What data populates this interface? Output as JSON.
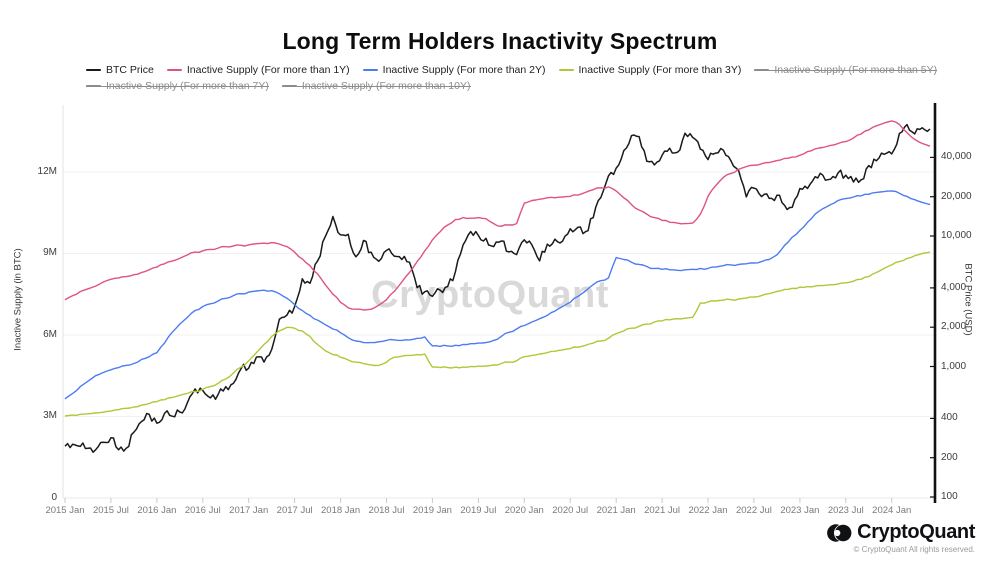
{
  "title": "Long Term Holders Inactivity Spectrum",
  "watermark": "CryptoQuant",
  "legend": {
    "items": [
      {
        "label": "BTC Price",
        "color": "#1a1a1a",
        "disabled": false
      },
      {
        "label": "Inactive Supply (For more than 1Y)",
        "color": "#df5380",
        "disabled": false
      },
      {
        "label": "Inactive Supply (For more than 2Y)",
        "color": "#4d7cf2",
        "disabled": false
      },
      {
        "label": "Inactive Supply (For more than 3Y)",
        "color": "#adc936",
        "disabled": false
      },
      {
        "label": "Inactive Supply (For more than 5Y)",
        "color": "#8c8c8c",
        "disabled": true
      },
      {
        "label": "Inactive Supply (For more than 7Y)",
        "color": "#8c8c8c",
        "disabled": true
      },
      {
        "label": "Inactive Supply (For more than 10Y)",
        "color": "#8c8c8c",
        "disabled": true
      }
    ]
  },
  "axes": {
    "left": {
      "title": "Inactive Supply (in BTC)",
      "ticks": [
        {
          "label": "0",
          "v": 0
        },
        {
          "label": "3M",
          "v": 3
        },
        {
          "label": "6M",
          "v": 6
        },
        {
          "label": "9M",
          "v": 9
        },
        {
          "label": "12M",
          "v": 12
        }
      ]
    },
    "right": {
      "title": "BTC Price (USD)",
      "ticks": [
        {
          "label": "100",
          "v": 100
        },
        {
          "label": "200",
          "v": 200
        },
        {
          "label": "400",
          "v": 400
        },
        {
          "label": "1,000",
          "v": 1000
        },
        {
          "label": "2,000",
          "v": 2000
        },
        {
          "label": "4,000",
          "v": 4000
        },
        {
          "label": "10,000",
          "v": 10000
        },
        {
          "label": "20,000",
          "v": 20000
        },
        {
          "label": "40,000",
          "v": 40000
        }
      ]
    },
    "x": {
      "ticks": [
        "2015 Jan",
        "2015 Jul",
        "2016 Jan",
        "2016 Jul",
        "2017 Jan",
        "2017 Jul",
        "2018 Jan",
        "2018 Jul",
        "2019 Jan",
        "2019 Jul",
        "2020 Jan",
        "2020 Jul",
        "2021 Jan",
        "2021 Jul",
        "2022 Jan",
        "2022 Jul",
        "2023 Jan",
        "2023 Jul",
        "2024 Jan"
      ]
    }
  },
  "footer": {
    "brand": "CryptoQuant",
    "copyright": "© CryptoQuant All rights reserved."
  },
  "chart_data": {
    "type": "line",
    "title": "Long Term Holders Inactivity Spectrum",
    "x_start": "2015-01",
    "x_end": "2024-06",
    "x_interval": "monthly",
    "left_axis": {
      "label": "Inactive Supply (in BTC)",
      "unit": "million BTC",
      "range": [
        0,
        14.5
      ],
      "scale": "linear"
    },
    "right_axis": {
      "label": "BTC Price (USD)",
      "unit": "USD",
      "range": [
        100,
        80000
      ],
      "scale": "log"
    },
    "legend_position": "top-left",
    "grid": "horizontal-only",
    "hidden_series": [
      "Inactive Supply (For more than 5Y)",
      "Inactive Supply (For more than 7Y)",
      "Inactive Supply (For more than 10Y)"
    ],
    "series": [
      {
        "name": "BTC Price",
        "axis": "right",
        "color": "#1a1a1a",
        "unit": "USD",
        "values": [
          245,
          254,
          244,
          236,
          230,
          263,
          284,
          230,
          236,
          314,
          378,
          430,
          368,
          437,
          416,
          448,
          531,
          673,
          655,
          575,
          610,
          700,
          742,
          963,
          970,
          1180,
          1080,
          1350,
          2300,
          2480,
          2875,
          4700,
          4340,
          6450,
          9900,
          14100,
          10200,
          10300,
          6930,
          9240,
          7500,
          6400,
          7750,
          7020,
          6600,
          6300,
          4020,
          3740,
          3450,
          3850,
          4100,
          5320,
          8550,
          10800,
          10080,
          9600,
          8300,
          9150,
          7550,
          7200,
          9350,
          8550,
          6440,
          8650,
          9450,
          9140,
          11350,
          11650,
          10780,
          13800,
          19700,
          28950,
          33110,
          45140,
          58800,
          57750,
          37330,
          35040,
          41500,
          47110,
          43790,
          61320,
          57000,
          46220,
          38480,
          43190,
          45540,
          37650,
          31790,
          19940,
          23290,
          20050,
          19420,
          20490,
          17160,
          16550,
          23130,
          23140,
          28480,
          29250,
          27220,
          30470,
          29230,
          25930,
          26960,
          34650,
          37720,
          42260,
          42580,
          61170,
          71330,
          60610,
          67500,
          66000
        ]
      },
      {
        "name": "Inactive Supply (For more than 1Y)",
        "axis": "left",
        "color": "#df5380",
        "unit": "M BTC",
        "values": [
          7.3,
          7.45,
          7.6,
          7.7,
          7.8,
          7.95,
          8.05,
          8.1,
          8.15,
          8.22,
          8.3,
          8.4,
          8.5,
          8.62,
          8.72,
          8.82,
          8.95,
          9.05,
          9.1,
          9.15,
          9.2,
          9.25,
          9.28,
          9.3,
          9.32,
          9.36,
          9.38,
          9.4,
          9.35,
          9.25,
          9.05,
          8.8,
          8.55,
          8.25,
          7.85,
          7.5,
          7.2,
          7.0,
          6.95,
          6.92,
          6.95,
          7.1,
          7.3,
          7.6,
          7.95,
          8.3,
          8.7,
          9.1,
          9.5,
          9.8,
          10.05,
          10.25,
          10.32,
          10.3,
          10.32,
          10.28,
          10.1,
          10.0,
          10.05,
          10.1,
          10.85,
          10.95,
          11.0,
          11.05,
          11.05,
          11.08,
          11.1,
          11.15,
          11.25,
          11.35,
          11.42,
          11.45,
          11.3,
          11.05,
          10.8,
          10.6,
          10.45,
          10.32,
          10.22,
          10.15,
          10.12,
          10.1,
          10.12,
          10.45,
          11.1,
          11.5,
          11.8,
          11.95,
          12.1,
          12.2,
          12.25,
          12.3,
          12.35,
          12.42,
          12.5,
          12.55,
          12.62,
          12.75,
          12.85,
          12.9,
          12.98,
          13.05,
          13.12,
          13.25,
          13.4,
          13.55,
          13.7,
          13.8,
          13.88,
          13.75,
          13.45,
          13.2,
          13.05,
          12.95
        ]
      },
      {
        "name": "Inactive Supply (For more than 2Y)",
        "axis": "left",
        "color": "#4d7cf2",
        "unit": "M BTC",
        "values": [
          3.65,
          3.85,
          4.1,
          4.3,
          4.5,
          4.62,
          4.72,
          4.8,
          4.88,
          4.95,
          5.1,
          5.2,
          5.35,
          5.7,
          6.1,
          6.4,
          6.65,
          6.9,
          7.05,
          7.15,
          7.25,
          7.35,
          7.45,
          7.52,
          7.58,
          7.62,
          7.65,
          7.63,
          7.52,
          7.35,
          7.12,
          6.9,
          6.72,
          6.55,
          6.38,
          6.22,
          6.08,
          5.9,
          5.78,
          5.72,
          5.72,
          5.75,
          5.8,
          5.82,
          5.8,
          5.82,
          5.88,
          5.93,
          5.6,
          5.58,
          5.6,
          5.62,
          5.65,
          5.68,
          5.7,
          5.72,
          5.8,
          5.95,
          6.1,
          6.22,
          6.35,
          6.48,
          6.6,
          6.72,
          6.88,
          7.05,
          7.2,
          7.42,
          7.62,
          7.85,
          8.0,
          8.1,
          8.85,
          8.78,
          8.68,
          8.6,
          8.52,
          8.45,
          8.42,
          8.4,
          8.38,
          8.4,
          8.42,
          8.45,
          8.45,
          8.5,
          8.55,
          8.58,
          8.6,
          8.62,
          8.65,
          8.7,
          8.78,
          8.95,
          9.3,
          9.6,
          9.85,
          10.15,
          10.45,
          10.65,
          10.8,
          10.95,
          11.02,
          11.08,
          11.12,
          11.18,
          11.25,
          11.28,
          11.3,
          11.22,
          11.1,
          10.98,
          10.88,
          10.8
        ]
      },
      {
        "name": "Inactive Supply (For more than 3Y)",
        "axis": "left",
        "color": "#adc936",
        "unit": "M BTC",
        "values": [
          3.02,
          3.05,
          3.08,
          3.1,
          3.13,
          3.16,
          3.2,
          3.25,
          3.3,
          3.35,
          3.42,
          3.48,
          3.55,
          3.62,
          3.7,
          3.78,
          3.85,
          3.92,
          4.0,
          4.1,
          4.22,
          4.38,
          4.6,
          4.82,
          5.05,
          5.35,
          5.65,
          5.95,
          6.15,
          6.28,
          6.25,
          6.15,
          5.95,
          5.65,
          5.42,
          5.28,
          5.18,
          5.08,
          5.0,
          4.95,
          4.9,
          4.88,
          5.0,
          5.18,
          5.22,
          5.25,
          5.28,
          5.3,
          4.82,
          4.8,
          4.8,
          4.82,
          4.82,
          4.84,
          4.85,
          4.86,
          4.9,
          4.95,
          5.0,
          5.05,
          5.2,
          5.25,
          5.3,
          5.35,
          5.4,
          5.45,
          5.5,
          5.55,
          5.62,
          5.7,
          5.78,
          5.88,
          6.05,
          6.15,
          6.25,
          6.32,
          6.4,
          6.48,
          6.52,
          6.56,
          6.6,
          6.62,
          6.65,
          7.18,
          7.22,
          7.25,
          7.28,
          7.3,
          7.32,
          7.36,
          7.4,
          7.45,
          7.52,
          7.6,
          7.68,
          7.72,
          7.76,
          7.78,
          7.8,
          7.82,
          7.85,
          7.88,
          7.92,
          7.98,
          8.05,
          8.15,
          8.3,
          8.45,
          8.58,
          8.7,
          8.82,
          8.92,
          9.0,
          9.05
        ]
      }
    ]
  }
}
